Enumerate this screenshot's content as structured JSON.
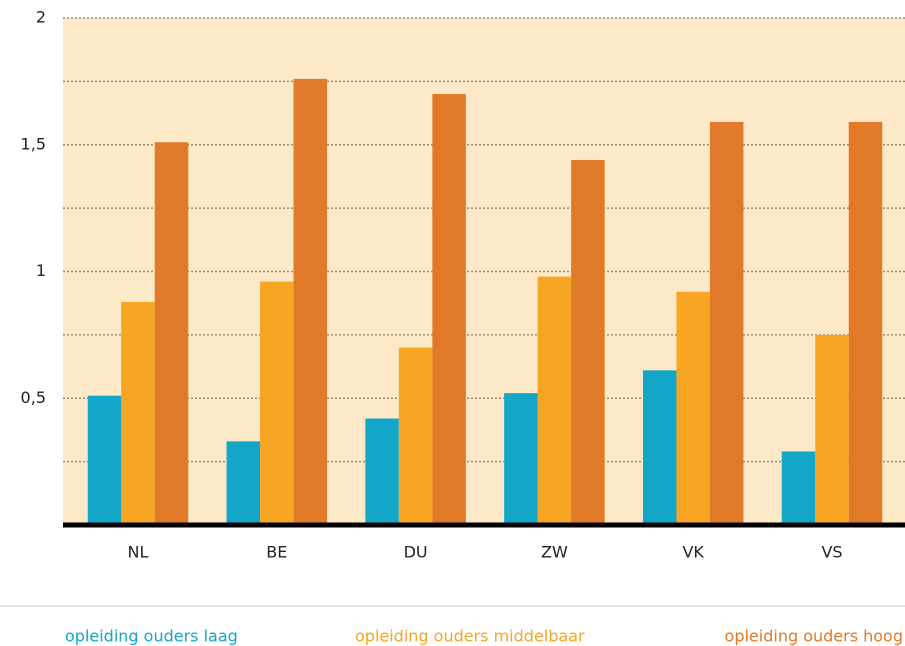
{
  "chart_data": {
    "type": "bar",
    "categories": [
      "NL",
      "BE",
      "DU",
      "ZW",
      "VK",
      "VS"
    ],
    "series": [
      {
        "name": "opleiding ouders laag",
        "color": "#12a7c8",
        "values": [
          0.51,
          0.33,
          0.42,
          0.52,
          0.61,
          0.29
        ]
      },
      {
        "name": "opleiding ouders middelbaar",
        "color": "#f6a623",
        "values": [
          0.88,
          0.96,
          0.7,
          0.98,
          0.92,
          0.75
        ]
      },
      {
        "name": "opleiding ouders hoog",
        "color": "#e07a28",
        "values": [
          1.51,
          1.76,
          1.7,
          1.44,
          1.59,
          1.59
        ]
      }
    ],
    "ylim": [
      0,
      2
    ],
    "yticks": [
      {
        "value": 0.5,
        "label": "0,5"
      },
      1,
      {
        "value": 1.5,
        "label": "1,5"
      },
      2
    ],
    "minor_yticks": [
      0.25,
      0.75,
      1.25,
      1.75
    ],
    "grid": true,
    "legend": "bottom"
  }
}
